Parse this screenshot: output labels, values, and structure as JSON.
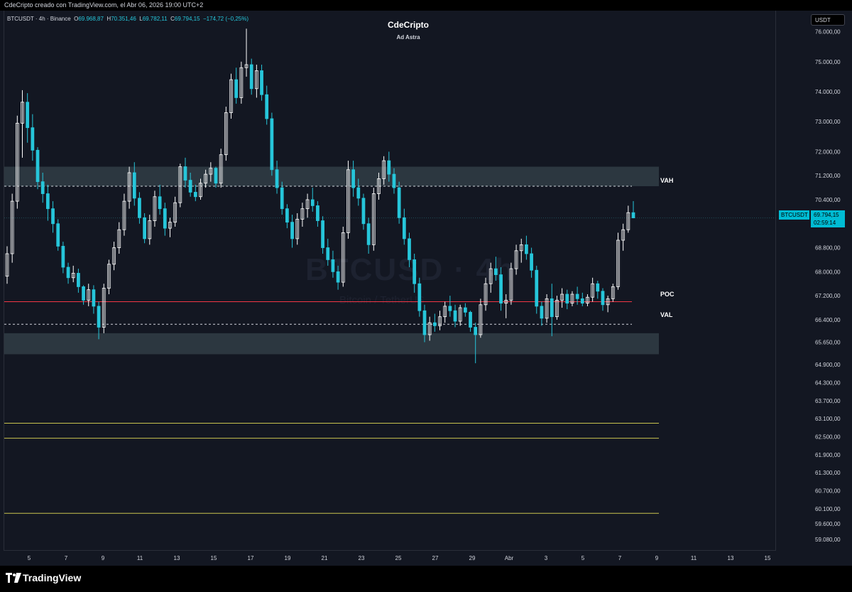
{
  "credit_line": "CdeCripto creado con TradingView.com, el Abr 06, 2026 19:00 UTC+2",
  "header": {
    "title": "CdeCripto",
    "subtitle": "Ad Astra"
  },
  "legend": {
    "symbol": "BTCUSDT · 4h · Binance",
    "open_key": "O",
    "open": "69.968,87",
    "high_key": "H",
    "high": "70.351,46",
    "low_key": "L",
    "low": "69.782,11",
    "close_key": "C",
    "close": "69.794,15",
    "change": "−174,72 (−0,25%)"
  },
  "watermark": {
    "symbol": "BTCUSD",
    "sep": "· 4h",
    "name": "Bitcoin / TetherUS"
  },
  "currency_badge": "USDT",
  "price_tag": {
    "ticker": "BTCUSDT",
    "price": "69.794,15",
    "countdown": "02:59:14"
  },
  "levels": {
    "vah": "VAH",
    "poc": "POC",
    "val": "VAL"
  },
  "brand": "TradingView",
  "colors": {
    "background": "#131722",
    "candle_up": "#ffffff",
    "candle_down": "#26c6da",
    "poc": "#f23645",
    "zone": "#2c3740",
    "yellow_lines": "#c9c44f",
    "accent": "#00bcd4"
  },
  "chart_data": {
    "type": "candlestick",
    "interval": "4h",
    "grid": false,
    "y_axis_labels": [
      "76.000,00",
      "75.000,00",
      "74.000,00",
      "73.000,00",
      "72.000,00",
      "71.200,00",
      "70.400,00",
      "69.600,00",
      "68.800,00",
      "68.000,00",
      "67.200,00",
      "66.400,00",
      "65.650,00",
      "64.900,00",
      "64.300,00",
      "63.700,00",
      "63.100,00",
      "62.500,00",
      "61.900,00",
      "61.300,00",
      "60.700,00",
      "60.100,00",
      "59.600,00",
      "59.080,00"
    ],
    "ylim": [
      58700,
      76700
    ],
    "x_axis_labels": [
      "5",
      "7",
      "9",
      "11",
      "13",
      "15",
      "17",
      "19",
      "21",
      "23",
      "25",
      "27",
      "29",
      "Abr",
      "3",
      "5",
      "7",
      "9",
      "11",
      "13",
      "15"
    ],
    "zones": [
      {
        "name": "resistance zone",
        "low": 70850,
        "high": 71500
      },
      {
        "name": "support zone",
        "low": 65250,
        "high": 65950
      }
    ],
    "value_area": {
      "vah": 70850,
      "poc": 67000,
      "val": 66250
    },
    "support_levels": [
      62950,
      62450,
      59950
    ],
    "last_price": 69794.15,
    "candles": [
      [
        67850,
        68850,
        67600,
        68600
      ],
      [
        68600,
        70600,
        68300,
        70350
      ],
      [
        70350,
        73200,
        70100,
        72950
      ],
      [
        72950,
        74050,
        71800,
        73650
      ],
      [
        73650,
        73950,
        72300,
        72800
      ],
      [
        72800,
        73250,
        71700,
        72050
      ],
      [
        72050,
        72150,
        70750,
        71000
      ],
      [
        71000,
        71300,
        70300,
        70600
      ],
      [
        70600,
        70900,
        69700,
        70100
      ],
      [
        70100,
        70350,
        69300,
        69600
      ],
      [
        69600,
        69750,
        68700,
        68850
      ],
      [
        68850,
        69000,
        67950,
        68150
      ],
      [
        68150,
        68300,
        67600,
        67800
      ],
      [
        67800,
        68200,
        67650,
        67950
      ],
      [
        67950,
        68100,
        67300,
        67500
      ],
      [
        67500,
        67550,
        66900,
        67050
      ],
      [
        67050,
        67600,
        66850,
        67400
      ],
      [
        67400,
        67550,
        66600,
        66850
      ],
      [
        66850,
        67000,
        65750,
        66150
      ],
      [
        66150,
        67600,
        65950,
        67450
      ],
      [
        67450,
        68400,
        67250,
        68250
      ],
      [
        68250,
        69000,
        68050,
        68800
      ],
      [
        68800,
        69650,
        68600,
        69400
      ],
      [
        69400,
        70600,
        69200,
        70350
      ],
      [
        70350,
        71500,
        70100,
        71300
      ],
      [
        71300,
        71650,
        70200,
        70450
      ],
      [
        70450,
        70650,
        69600,
        69800
      ],
      [
        69800,
        69950,
        68950,
        69100
      ],
      [
        69100,
        69900,
        68900,
        69700
      ],
      [
        69700,
        70700,
        69500,
        70500
      ],
      [
        70500,
        70900,
        69900,
        70100
      ],
      [
        70100,
        70300,
        69200,
        69450
      ],
      [
        69450,
        69800,
        69150,
        69650
      ],
      [
        69650,
        70500,
        69500,
        70300
      ],
      [
        70300,
        71600,
        70150,
        71500
      ],
      [
        71500,
        71800,
        70800,
        71050
      ],
      [
        71050,
        71300,
        70500,
        70650
      ],
      [
        70650,
        70900,
        70350,
        70500
      ],
      [
        70500,
        71100,
        70400,
        70950
      ],
      [
        70950,
        71400,
        70800,
        71250
      ],
      [
        71250,
        71650,
        71000,
        71450
      ],
      [
        71450,
        71500,
        70800,
        70950
      ],
      [
        70950,
        72100,
        70800,
        71900
      ],
      [
        71900,
        73500,
        71700,
        73300
      ],
      [
        73300,
        74600,
        73100,
        74400
      ],
      [
        74400,
        74800,
        73600,
        73800
      ],
      [
        73800,
        75000,
        73600,
        74800
      ],
      [
        74800,
        76100,
        74500,
        74900
      ],
      [
        74900,
        75100,
        73900,
        74100
      ],
      [
        74100,
        74900,
        73800,
        74700
      ],
      [
        74700,
        74900,
        73700,
        73900
      ],
      [
        73900,
        74200,
        72900,
        73100
      ],
      [
        73100,
        73300,
        71200,
        71400
      ],
      [
        71400,
        71700,
        70600,
        70800
      ],
      [
        70800,
        71000,
        69900,
        70100
      ],
      [
        70100,
        70250,
        69450,
        69650
      ],
      [
        69650,
        69900,
        68800,
        69100
      ],
      [
        69100,
        69950,
        68900,
        69750
      ],
      [
        69750,
        70300,
        69500,
        70100
      ],
      [
        70100,
        70600,
        69800,
        70400
      ],
      [
        70400,
        70800,
        70000,
        70200
      ],
      [
        70200,
        70350,
        69500,
        69700
      ],
      [
        69700,
        69850,
        68600,
        68800
      ],
      [
        68800,
        69100,
        68200,
        68400
      ],
      [
        68400,
        68700,
        67800,
        68000
      ],
      [
        68000,
        68200,
        67400,
        67650
      ],
      [
        67650,
        69500,
        67500,
        69300
      ],
      [
        69300,
        71700,
        69100,
        71400
      ],
      [
        71400,
        71700,
        70500,
        70800
      ],
      [
        70800,
        71100,
        70200,
        70450
      ],
      [
        70450,
        70600,
        69400,
        69600
      ],
      [
        69600,
        69800,
        68600,
        68900
      ],
      [
        68900,
        70800,
        68700,
        70600
      ],
      [
        70600,
        71300,
        70400,
        71100
      ],
      [
        71100,
        71850,
        70900,
        71700
      ],
      [
        71700,
        72000,
        71000,
        71250
      ],
      [
        71250,
        71450,
        70600,
        70800
      ],
      [
        70800,
        71000,
        69600,
        69800
      ],
      [
        69800,
        70100,
        68900,
        69100
      ],
      [
        69100,
        69300,
        68150,
        68400
      ],
      [
        68400,
        68600,
        67300,
        67600
      ],
      [
        67600,
        67800,
        66500,
        66700
      ],
      [
        66700,
        66900,
        65650,
        65900
      ],
      [
        65900,
        66500,
        65700,
        66300
      ],
      [
        66300,
        66600,
        66000,
        66200
      ],
      [
        66200,
        66700,
        66050,
        66500
      ],
      [
        66500,
        67000,
        66300,
        66850
      ],
      [
        66850,
        67200,
        66500,
        66700
      ],
      [
        66700,
        66900,
        66150,
        66350
      ],
      [
        66350,
        66900,
        66200,
        66800
      ],
      [
        66800,
        66950,
        66500,
        66650
      ],
      [
        66650,
        66700,
        66000,
        66150
      ],
      [
        66150,
        66300,
        64950,
        65900
      ],
      [
        65900,
        67100,
        65800,
        66900
      ],
      [
        66900,
        67800,
        66700,
        67600
      ],
      [
        67600,
        68300,
        67300,
        68100
      ],
      [
        68100,
        68500,
        67700,
        67900
      ],
      [
        67900,
        68150,
        66700,
        66950
      ],
      [
        66950,
        67250,
        66450,
        67050
      ],
      [
        67050,
        68300,
        66900,
        68100
      ],
      [
        68100,
        68900,
        67900,
        68700
      ],
      [
        68700,
        69100,
        68300,
        68900
      ],
      [
        68900,
        69200,
        68400,
        68600
      ],
      [
        68600,
        68800,
        67800,
        68050
      ],
      [
        68050,
        68200,
        66600,
        66850
      ],
      [
        66850,
        67000,
        66200,
        66450
      ],
      [
        66450,
        67250,
        66300,
        67100
      ],
      [
        67100,
        67600,
        65850,
        66500
      ],
      [
        66500,
        67200,
        66400,
        67050
      ],
      [
        67050,
        67450,
        66800,
        67250
      ],
      [
        67250,
        67400,
        66750,
        66950
      ],
      [
        66950,
        67350,
        66850,
        67250
      ],
      [
        67250,
        67500,
        66900,
        67100
      ],
      [
        67100,
        67300,
        66850,
        66950
      ],
      [
        66950,
        67250,
        66850,
        67150
      ],
      [
        67150,
        67800,
        67000,
        67600
      ],
      [
        67600,
        67700,
        67100,
        67350
      ],
      [
        67350,
        67450,
        66700,
        66900
      ],
      [
        66900,
        67200,
        66650,
        67100
      ],
      [
        67100,
        67600,
        67000,
        67500
      ],
      [
        67500,
        69300,
        67400,
        69050
      ],
      [
        69050,
        69600,
        68700,
        69400
      ],
      [
        69400,
        70200,
        69300,
        69968.87
      ],
      [
        69968.87,
        70351.46,
        69782.11,
        69794.15
      ]
    ]
  }
}
